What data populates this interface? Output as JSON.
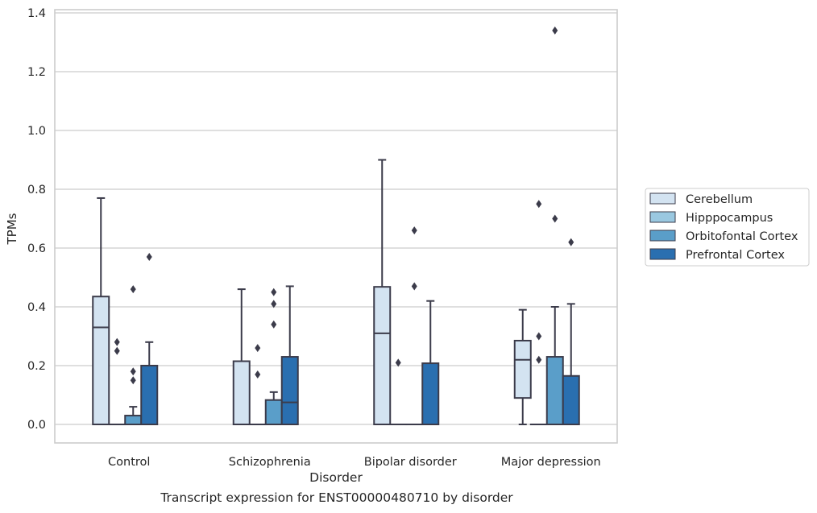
{
  "caption": "Transcript expression for ENST00000480710 by disorder",
  "chart_data": {
    "type": "boxplot",
    "title": "",
    "xlabel": "Disorder",
    "ylabel": "TPMs",
    "ylim": [
      -0.063,
      1.41
    ],
    "yticks": [
      0.0,
      0.2,
      0.4,
      0.6,
      0.8,
      1.0,
      1.2,
      1.4
    ],
    "ytick_labels": [
      "0.0",
      "0.2",
      "0.4",
      "0.6",
      "0.8",
      "1.0",
      "1.2",
      "1.4"
    ],
    "grid": "horizontal",
    "legend_position": "outside-right",
    "categories": [
      "Control",
      "Schizophrenia",
      "Bipolar disorder",
      "Major depression"
    ],
    "series": [
      {
        "name": "Cerebellum",
        "color": "#d3e3f1",
        "boxes": [
          {
            "whislo": 0.0,
            "q1": 0.0,
            "med": 0.33,
            "q3": 0.435,
            "whishi": 0.77,
            "fliers": []
          },
          {
            "whislo": 0.0,
            "q1": 0.0,
            "med": 0.0,
            "q3": 0.215,
            "whishi": 0.46,
            "fliers": []
          },
          {
            "whislo": 0.0,
            "q1": 0.0,
            "med": 0.31,
            "q3": 0.468,
            "whishi": 0.9,
            "fliers": []
          },
          {
            "whislo": 0.0,
            "q1": 0.09,
            "med": 0.22,
            "q3": 0.285,
            "whishi": 0.39,
            "fliers": []
          }
        ]
      },
      {
        "name": "Hipppocampus",
        "color": "#9ac8e0",
        "boxes": [
          {
            "whislo": 0.0,
            "q1": 0.0,
            "med": 0.0,
            "q3": 0.0,
            "whishi": 0.0,
            "fliers": [
              0.25,
              0.28
            ]
          },
          {
            "whislo": 0.0,
            "q1": 0.0,
            "med": 0.0,
            "q3": 0.0,
            "whishi": 0.0,
            "fliers": [
              0.17,
              0.26
            ]
          },
          {
            "whislo": 0.0,
            "q1": 0.0,
            "med": 0.0,
            "q3": 0.0,
            "whishi": 0.0,
            "fliers": [
              0.21
            ]
          },
          {
            "whislo": 0.0,
            "q1": 0.0,
            "med": 0.0,
            "q3": 0.0,
            "whishi": 0.0,
            "fliers": [
              0.22,
              0.3,
              0.75
            ]
          }
        ]
      },
      {
        "name": "Orbitofontal Cortex",
        "color": "#5a9ec9",
        "boxes": [
          {
            "whislo": 0.0,
            "q1": 0.0,
            "med": 0.0,
            "q3": 0.03,
            "whishi": 0.06,
            "fliers": [
              0.15,
              0.18,
              0.46
            ]
          },
          {
            "whislo": 0.0,
            "q1": 0.0,
            "med": 0.0,
            "q3": 0.083,
            "whishi": 0.11,
            "fliers": [
              0.34,
              0.41,
              0.45
            ]
          },
          {
            "whislo": 0.0,
            "q1": 0.0,
            "med": 0.0,
            "q3": 0.0,
            "whishi": 0.0,
            "fliers": [
              0.47,
              0.66
            ]
          },
          {
            "whislo": 0.0,
            "q1": 0.0,
            "med": 0.0,
            "q3": 0.23,
            "whishi": 0.4,
            "fliers": [
              0.7,
              1.34
            ]
          }
        ]
      },
      {
        "name": "Prefrontal Cortex",
        "color": "#2a6fb0",
        "boxes": [
          {
            "whislo": 0.0,
            "q1": 0.0,
            "med": 0.0,
            "q3": 0.2,
            "whishi": 0.28,
            "fliers": [
              0.57
            ]
          },
          {
            "whislo": 0.0,
            "q1": 0.0,
            "med": 0.075,
            "q3": 0.23,
            "whishi": 0.47,
            "fliers": []
          },
          {
            "whislo": 0.0,
            "q1": 0.0,
            "med": 0.0,
            "q3": 0.208,
            "whishi": 0.42,
            "fliers": []
          },
          {
            "whislo": 0.0,
            "q1": 0.0,
            "med": 0.0,
            "q3": 0.165,
            "whishi": 0.41,
            "fliers": [
              0.62
            ]
          }
        ]
      }
    ]
  }
}
